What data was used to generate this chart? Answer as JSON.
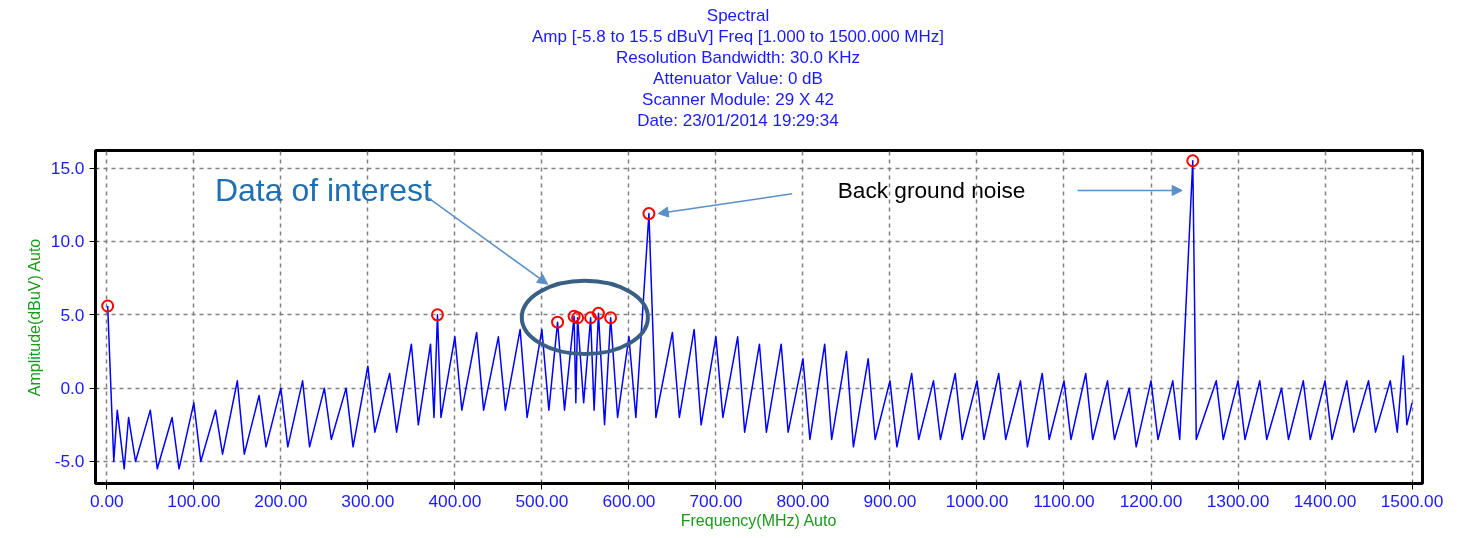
{
  "chart_data": {
    "type": "line",
    "title": "Spectral",
    "subtitle": "Amp [-5.8 to 15.5 dBuV]  Freq [1.000 to 1500.000 MHz]\nResolution Bandwidth: 30.0 KHz\nAttenuator Value: 0 dB\nScanner Module: 29 X 42\nDate: 23/01/2014 19:29:34",
    "xlabel": "Frequency(MHz) Auto",
    "ylabel": "Amplitude(dBuV) Auto",
    "xlim": [
      -13,
      1512
    ],
    "ylim": [
      -6.5,
      16.2
    ],
    "xticks": [
      {
        "value": 0,
        "label": "0.00"
      },
      {
        "value": 100,
        "label": "100.00"
      },
      {
        "value": 200,
        "label": "200.00"
      },
      {
        "value": 300,
        "label": "300.00"
      },
      {
        "value": 400,
        "label": "400.00"
      },
      {
        "value": 500,
        "label": "500.00"
      },
      {
        "value": 600,
        "label": "600.00"
      },
      {
        "value": 700,
        "label": "700.00"
      },
      {
        "value": 800,
        "label": "800.00"
      },
      {
        "value": 900,
        "label": "900.00"
      },
      {
        "value": 1000,
        "label": "1000.00"
      },
      {
        "value": 1100,
        "label": "1100.00"
      },
      {
        "value": 1200,
        "label": "1200.00"
      },
      {
        "value": 1300,
        "label": "1300.00"
      },
      {
        "value": 1400,
        "label": "1400.00"
      },
      {
        "value": 1500,
        "label": "1500.00"
      }
    ],
    "yticks": [
      {
        "value": -5,
        "label": "-5.0"
      },
      {
        "value": 0,
        "label": "0.0"
      },
      {
        "value": 5,
        "label": "5.0"
      },
      {
        "value": 10,
        "label": "10.0"
      },
      {
        "value": 15,
        "label": "15.0"
      }
    ],
    "grid": true,
    "line_style": "solid",
    "series": [
      {
        "color": "#0000ff",
        "x": [
          1,
          8,
          12,
          20,
          25,
          33,
          50,
          58,
          75,
          83,
          100,
          108,
          125,
          133,
          150,
          158,
          175,
          183,
          200,
          208,
          225,
          233,
          250,
          258,
          275,
          283,
          300,
          308,
          325,
          333,
          350,
          358,
          372,
          376,
          380,
          384,
          400,
          408,
          425,
          433,
          450,
          458,
          475,
          483,
          500,
          508,
          518,
          526,
          537,
          539,
          541,
          548,
          556,
          560,
          565,
          572,
          579,
          587,
          600,
          608,
          623,
          631,
          650,
          658,
          675,
          683,
          700,
          708,
          725,
          733,
          750,
          758,
          775,
          783,
          800,
          808,
          825,
          833,
          850,
          858,
          875,
          883,
          900,
          908,
          925,
          933,
          950,
          958,
          975,
          983,
          1000,
          1008,
          1025,
          1033,
          1050,
          1058,
          1075,
          1083,
          1100,
          1108,
          1125,
          1133,
          1150,
          1158,
          1175,
          1183,
          1200,
          1208,
          1225,
          1233,
          1248,
          1252,
          1275,
          1283,
          1300,
          1308,
          1325,
          1333,
          1350,
          1358,
          1375,
          1383,
          1400,
          1408,
          1425,
          1433,
          1450,
          1458,
          1475,
          1483,
          1490,
          1494,
          1500
        ],
        "values": [
          5.6,
          -5,
          -1.5,
          -5.5,
          -2,
          -5,
          -1.5,
          -5.5,
          -2,
          -5.5,
          -1,
          -5,
          -1.5,
          -4.5,
          0.5,
          -4.5,
          -0.5,
          -4,
          0,
          -4,
          0.5,
          -4,
          0,
          -3.5,
          0,
          -4,
          1.5,
          -3,
          1,
          -3,
          3,
          -2.5,
          3,
          -2,
          5.0,
          -2,
          3.5,
          -1.5,
          3.8,
          -1.5,
          3.5,
          -1.5,
          4,
          -2,
          4,
          -1.5,
          4.5,
          -1.5,
          4.9,
          -1,
          4.8,
          -1,
          4.8,
          -1.5,
          5.1,
          -2.5,
          4.8,
          -2,
          3.5,
          -2,
          11.9,
          -2,
          3.8,
          -2,
          4,
          -2.5,
          3.5,
          -2,
          3.5,
          -3,
          3,
          -3,
          3,
          -3,
          2,
          -3.5,
          3,
          -3.5,
          2.5,
          -4,
          2,
          -3.5,
          0.5,
          -4,
          1,
          -3.5,
          0.5,
          -3.5,
          1,
          -3.5,
          0.5,
          -3.5,
          1,
          -3.5,
          0.5,
          -4,
          1,
          -3.5,
          0.5,
          -3.5,
          1,
          -3.5,
          0.5,
          -3.5,
          0,
          -4,
          0.5,
          -3.5,
          0.5,
          -3.5,
          15.5,
          -3.5,
          0.5,
          -3.5,
          0.5,
          -3.5,
          0.5,
          -3.5,
          0,
          -3.5,
          0.5,
          -3.5,
          0.5,
          -3.5,
          0.5,
          -3,
          0.5,
          -3,
          0.5,
          -3,
          2.2,
          -2.5,
          -1
        ]
      },
      {
        "type": "scatter",
        "marker": "circle",
        "color": "#ff0000",
        "x": [
          1,
          380,
          518,
          537,
          541,
          556,
          565,
          579,
          623,
          1248
        ],
        "values": [
          5.6,
          5.0,
          4.5,
          4.9,
          4.8,
          4.8,
          5.1,
          4.8,
          11.9,
          15.5
        ]
      }
    ],
    "annotations": [
      "Data of interest",
      "Back ground noise"
    ]
  }
}
